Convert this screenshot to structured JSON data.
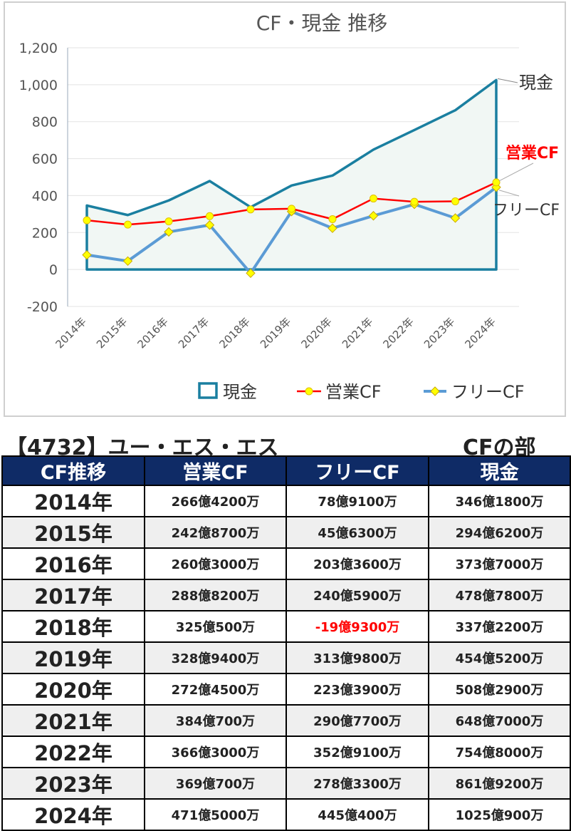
{
  "chart_data": {
    "type": "line",
    "title": "CF・現金 推移",
    "categories": [
      "2014年",
      "2015年",
      "2016年",
      "2017年",
      "2018年",
      "2019年",
      "2020年",
      "2021年",
      "2022年",
      "2023年",
      "2024年"
    ],
    "ylim": [
      -200,
      1200
    ],
    "yticks": [
      -200,
      0,
      200,
      400,
      600,
      800,
      1000,
      1200
    ],
    "ytick_labels": [
      "-200",
      "0",
      "200",
      "400",
      "600",
      "800",
      "1,000",
      "1,200"
    ],
    "grid": true,
    "legend": "bottom",
    "series": [
      {
        "name": "現金",
        "kind": "area",
        "color": "#1a7fa0",
        "fill": "#f1f7f4",
        "values": [
          346.18,
          294.62,
          373.7,
          478.78,
          337.22,
          454.52,
          508.29,
          648.7,
          754.8,
          861.92,
          1025.09
        ]
      },
      {
        "name": "営業CF",
        "kind": "line",
        "color": "#ff0000",
        "marker": "circle",
        "marker_fill": "#ffff00",
        "values": [
          266.42,
          242.87,
          260.3,
          288.82,
          325.05,
          328.94,
          272.45,
          384.07,
          366.3,
          369.07,
          471.5
        ]
      },
      {
        "name": "フリーCF",
        "kind": "line",
        "color": "#5b9bd5",
        "marker": "diamond",
        "marker_fill": "#ffff00",
        "values": [
          78.91,
          45.63,
          203.36,
          240.59,
          -19.93,
          313.98,
          223.39,
          290.77,
          352.91,
          278.33,
          445.04
        ]
      }
    ],
    "end_labels": [
      {
        "text": "現金",
        "color": "#333333"
      },
      {
        "text": "営業CF",
        "color": "#ff0000"
      },
      {
        "text": "フリーCF",
        "color": "#333333"
      }
    ]
  },
  "section": {
    "company": "【4732】ユー・エス・エス",
    "part": "CFの部"
  },
  "table": {
    "headers": [
      "CF推移",
      "営業CF",
      "フリーCF",
      "現金"
    ],
    "rows": [
      {
        "year": "2014年",
        "op": "266億4200万",
        "free": "78億9100万",
        "cash": "346億1800万",
        "free_negative": false
      },
      {
        "year": "2015年",
        "op": "242億8700万",
        "free": "45億6300万",
        "cash": "294億6200万",
        "free_negative": false
      },
      {
        "year": "2016年",
        "op": "260億3000万",
        "free": "203億3600万",
        "cash": "373億7000万",
        "free_negative": false
      },
      {
        "year": "2017年",
        "op": "288億8200万",
        "free": "240億5900万",
        "cash": "478億7800万",
        "free_negative": false
      },
      {
        "year": "2018年",
        "op": "325億500万",
        "free": "-19億9300万",
        "cash": "337億2200万",
        "free_negative": true
      },
      {
        "year": "2019年",
        "op": "328億9400万",
        "free": "313億9800万",
        "cash": "454億5200万",
        "free_negative": false
      },
      {
        "year": "2020年",
        "op": "272億4500万",
        "free": "223億3900万",
        "cash": "508億2900万",
        "free_negative": false
      },
      {
        "year": "2021年",
        "op": "384億700万",
        "free": "290億7700万",
        "cash": "648億7000万",
        "free_negative": false
      },
      {
        "year": "2022年",
        "op": "366億3000万",
        "free": "352億9100万",
        "cash": "754億8000万",
        "free_negative": false
      },
      {
        "year": "2023年",
        "op": "369億700万",
        "free": "278億3300万",
        "cash": "861億9200万",
        "free_negative": false
      },
      {
        "year": "2024年",
        "op": "471億5000万",
        "free": "445億400万",
        "cash": "1025億900万",
        "free_negative": false
      }
    ]
  }
}
